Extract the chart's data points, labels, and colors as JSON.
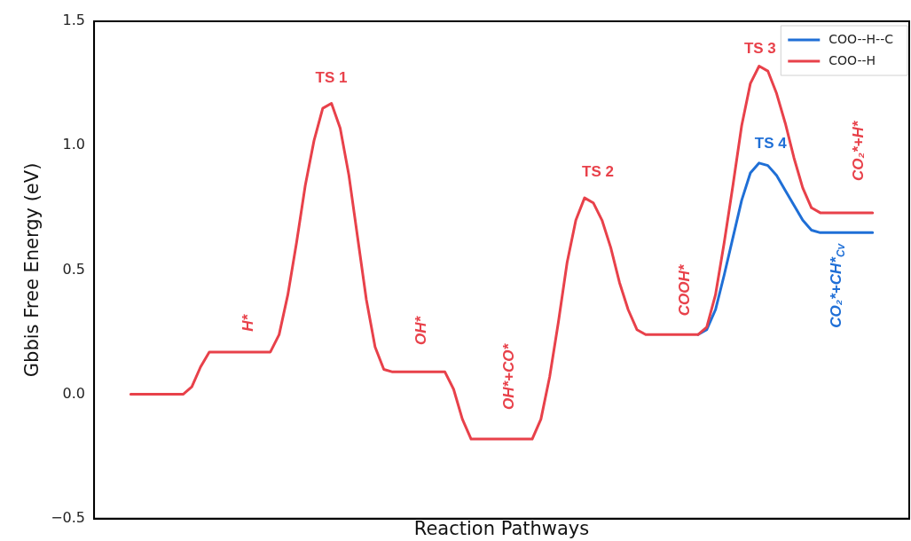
{
  "chart_data": {
    "type": "line",
    "xlabel": "Reaction Pathways",
    "ylabel": "Gbbis Free Energy (eV)",
    "categories": [
      null,
      null,
      null,
      null,
      null,
      null,
      null,
      null,
      null,
      null,
      null,
      null,
      null,
      null,
      null,
      null,
      null,
      null,
      null,
      null,
      null,
      null,
      null,
      null,
      null,
      null,
      null,
      null,
      null,
      null,
      null,
      null,
      null,
      null,
      null,
      null,
      null,
      null,
      null,
      null,
      null,
      null,
      null,
      null,
      null,
      null,
      null,
      null,
      null,
      null,
      null,
      null,
      null,
      null,
      null,
      null,
      null,
      null,
      null,
      null,
      null,
      null,
      null,
      null,
      null,
      null,
      null,
      null,
      null,
      null,
      null,
      null,
      null,
      null,
      null,
      null,
      null,
      null,
      null,
      null,
      null,
      null,
      null,
      null,
      null,
      null
    ],
    "series": [
      {
        "name": "COO--H--C",
        "color": "#1f6fd6",
        "values": [
          null,
          null,
          null,
          null,
          null,
          null,
          null,
          null,
          null,
          null,
          null,
          null,
          null,
          null,
          null,
          null,
          null,
          null,
          null,
          null,
          null,
          null,
          null,
          null,
          null,
          null,
          null,
          null,
          null,
          null,
          null,
          null,
          null,
          null,
          null,
          null,
          null,
          null,
          null,
          null,
          null,
          null,
          null,
          null,
          null,
          null,
          null,
          null,
          null,
          null,
          null,
          null,
          null,
          null,
          null,
          null,
          null,
          null,
          null,
          null,
          null,
          null,
          null,
          null,
          null,
          0.24,
          0.26,
          0.34,
          0.48,
          0.63,
          0.78,
          0.89,
          0.93,
          0.92,
          0.88,
          0.82,
          0.76,
          0.7,
          0.66,
          0.65,
          0.65,
          0.65,
          0.65,
          0.65,
          0.65,
          0.65
        ]
      },
      {
        "name": "COO--H",
        "color": "#e8414a",
        "values": [
          0,
          0,
          0,
          0,
          0,
          0,
          0,
          0.03,
          0.11,
          0.17,
          0.17,
          0.17,
          0.17,
          0.17,
          0.17,
          0.17,
          0.17,
          0.24,
          0.4,
          0.61,
          0.84,
          1.02,
          1.15,
          1.17,
          1.07,
          0.88,
          0.63,
          0.38,
          0.19,
          0.1,
          0.09,
          0.09,
          0.09,
          0.09,
          0.09,
          0.09,
          0.09,
          0.02,
          -0.1,
          -0.18,
          -0.18,
          -0.18,
          -0.18,
          -0.18,
          -0.18,
          -0.18,
          -0.18,
          -0.1,
          0.07,
          0.29,
          0.53,
          0.7,
          0.79,
          0.77,
          0.7,
          0.59,
          0.45,
          0.34,
          0.26,
          0.24,
          0.24,
          0.24,
          0.24,
          0.24,
          0.24,
          0.24,
          0.27,
          0.4,
          0.61,
          0.84,
          1.08,
          1.25,
          1.32,
          1.3,
          1.21,
          1.09,
          0.95,
          0.83,
          0.75,
          0.73,
          0.73,
          0.73,
          0.73,
          0.73,
          0.73,
          0.73
        ]
      }
    ],
    "ylim": [
      -0.5,
      1.5
    ],
    "yticks": [
      {
        "value": -0.5,
        "label": "−0.5"
      },
      {
        "value": 0,
        "label": "0.0"
      },
      0.5,
      {
        "value": 1,
        "label": "1.0"
      },
      1.5
    ],
    "tick_labels": "y",
    "grid": false,
    "legend": "top right",
    "marker": "none",
    "line_style": "solid",
    "annotations": [
      "H*",
      "TS 1",
      "OH*",
      "OH*+CO*",
      "TS 2",
      "COOH*",
      "TS 3",
      "TS 4",
      "CO₂*+H*",
      "CO₂*+CH*$_{Cv}$"
    ]
  }
}
